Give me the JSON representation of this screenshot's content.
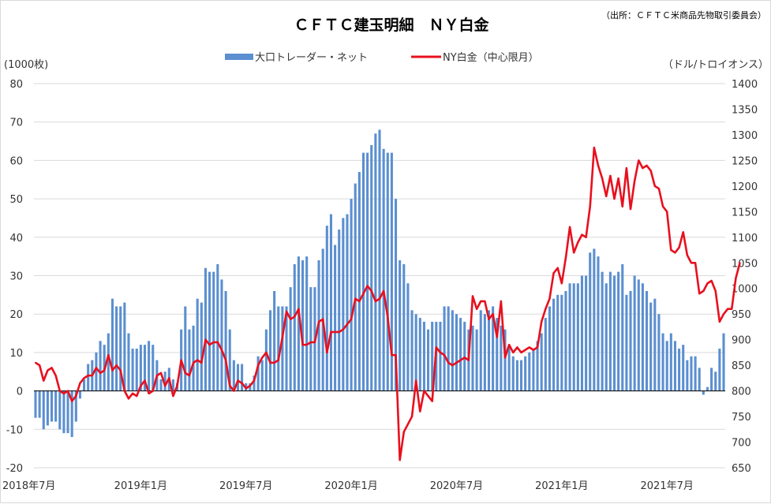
{
  "chart_data": {
    "type": "bar+line",
    "title": "ＣＦＴＣ建玉明細　ＮＹ白金",
    "source_note": "（出所：ＣＦＴＣ米商品先物取引委員会）",
    "left_unit": "(1000枚)",
    "right_unit": "（ドル/トロイオンス）",
    "legend": {
      "bar_label": "大口トレーダー・ネット",
      "line_label": "NY白金（中心限月）"
    },
    "colors": {
      "bar": "#5b8fd0",
      "line": "#e8101e",
      "grid": "#d9d9d9"
    },
    "left_axis": {
      "min": -20,
      "max": 80,
      "step": 10,
      "ticks": [
        "-20",
        "-10",
        "0",
        "10",
        "20",
        "30",
        "40",
        "50",
        "60",
        "70",
        "80"
      ]
    },
    "right_axis": {
      "min": 650,
      "max": 1400,
      "step": 50,
      "ticks": [
        "650",
        "700",
        "750",
        "800",
        "850",
        "900",
        "950",
        "1000",
        "1050",
        "1100",
        "1150",
        "1200",
        "1250",
        "1300",
        "1350",
        "1400"
      ]
    },
    "x_labels": [
      "2018年7月",
      "2019年1月",
      "2019年7月",
      "2020年1月",
      "2020年7月",
      "2021年1月",
      "2021年7月"
    ],
    "x_label_week_index": [
      0,
      26,
      52,
      78,
      104,
      130,
      156
    ],
    "grid": true,
    "net_positions_k": [
      -7,
      -7,
      -10,
      -9,
      -8,
      -8,
      -10,
      -11,
      -11,
      -12,
      -8,
      -2,
      3,
      7,
      8,
      10,
      13,
      12,
      15,
      24,
      22,
      22,
      23,
      15,
      11,
      11,
      12,
      12,
      13,
      12,
      8,
      3,
      5,
      6,
      3,
      2,
      16,
      22,
      16,
      17,
      24,
      23,
      32,
      31,
      31,
      33,
      29,
      26,
      16,
      8,
      7,
      7,
      2,
      2,
      4,
      9,
      8,
      16,
      21,
      26,
      22,
      22,
      22,
      27,
      33,
      35,
      34,
      35,
      27,
      27,
      34,
      37,
      43,
      46,
      38,
      42,
      45,
      46,
      50,
      54,
      57,
      62,
      62,
      64,
      67,
      68,
      63,
      62,
      62,
      50,
      34,
      33,
      28,
      21,
      20,
      19,
      18,
      16,
      18,
      18,
      18,
      22,
      22,
      21,
      20,
      19,
      18,
      16,
      17,
      16,
      21,
      20,
      21,
      22,
      19,
      17,
      16,
      12,
      9,
      8,
      8,
      9,
      10,
      11,
      13,
      15,
      19,
      22,
      24,
      25,
      25,
      26,
      28,
      28,
      28,
      30,
      30,
      36,
      37,
      35,
      31,
      28,
      31,
      30,
      31,
      33,
      25,
      26,
      30,
      29,
      28,
      26,
      23,
      24,
      20,
      15,
      13,
      15,
      13,
      11,
      12,
      8,
      9,
      9,
      6,
      -1,
      1,
      6,
      5,
      11,
      15
    ],
    "platinum_price_usd": [
      855,
      850,
      820,
      840,
      845,
      830,
      800,
      795,
      800,
      780,
      790,
      815,
      825,
      830,
      830,
      845,
      835,
      840,
      870,
      840,
      850,
      840,
      800,
      785,
      795,
      790,
      810,
      820,
      795,
      800,
      830,
      835,
      810,
      825,
      790,
      810,
      860,
      835,
      830,
      855,
      860,
      855,
      900,
      890,
      895,
      895,
      880,
      860,
      810,
      800,
      820,
      815,
      805,
      810,
      820,
      850,
      865,
      875,
      855,
      855,
      860,
      905,
      955,
      940,
      945,
      960,
      890,
      890,
      895,
      895,
      935,
      940,
      875,
      915,
      915,
      915,
      920,
      930,
      940,
      980,
      975,
      990,
      1005,
      995,
      975,
      980,
      995,
      945,
      870,
      870,
      665,
      720,
      735,
      750,
      820,
      760,
      800,
      790,
      780,
      885,
      875,
      870,
      855,
      850,
      855,
      860,
      865,
      860,
      985,
      960,
      975,
      975,
      940,
      950,
      905,
      975,
      865,
      890,
      875,
      885,
      875,
      880,
      885,
      880,
      885,
      935,
      960,
      980,
      1030,
      1040,
      1010,
      1060,
      1120,
      1070,
      1090,
      1105,
      1100,
      1160,
      1275,
      1240,
      1215,
      1180,
      1220,
      1175,
      1215,
      1160,
      1235,
      1155,
      1210,
      1250,
      1235,
      1240,
      1230,
      1200,
      1195,
      1160,
      1150,
      1075,
      1070,
      1080,
      1110,
      1065,
      1050,
      1050,
      990,
      995,
      1010,
      1015,
      995,
      935,
      950,
      960,
      960,
      1020,
      1050
    ]
  }
}
